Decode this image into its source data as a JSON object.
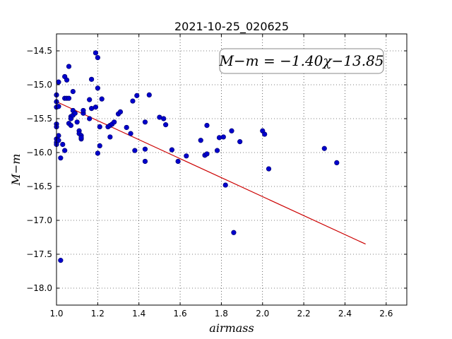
{
  "chart_data": {
    "type": "scatter",
    "title": "2021-10-25_020625",
    "xlabel": "airmass",
    "ylabel": "M−m",
    "xlim": [
      1.0,
      2.7
    ],
    "ylim": [
      -18.25,
      -14.25
    ],
    "y_inverted": true,
    "grid": true,
    "grid_style": "dotted",
    "x_ticks": [
      1.0,
      1.2,
      1.4,
      1.6,
      1.8,
      2.0,
      2.2,
      2.4,
      2.6
    ],
    "x_tick_labels": [
      "1.0",
      "1.2",
      "1.4",
      "1.6",
      "1.8",
      "2.0",
      "2.2",
      "2.4",
      "2.6"
    ],
    "y_ticks": [
      -14.5,
      -15.0,
      -15.5,
      -16.0,
      -16.5,
      -17.0,
      -17.5,
      -18.0
    ],
    "y_tick_labels": [
      "−14.5",
      "−15.0",
      "−15.5",
      "−16.0",
      "−16.5",
      "−17.0",
      "−17.5",
      "−18.0"
    ],
    "annotation": "M−m = −1.40χ−13.85",
    "colors": {
      "points": "#0000cc",
      "fit_line": "#cc0000"
    },
    "fit": {
      "slope": -1.4,
      "intercept": -13.85,
      "x_range": [
        1.0,
        2.5
      ]
    },
    "x": [
      1.0,
      1.0,
      1.0,
      1.0,
      1.0,
      1.0,
      1.0,
      1.0,
      1.01,
      1.01,
      1.01,
      1.01,
      1.02,
      1.02,
      1.03,
      1.04,
      1.04,
      1.04,
      1.05,
      1.05,
      1.06,
      1.06,
      1.06,
      1.07,
      1.07,
      1.07,
      1.08,
      1.08,
      1.08,
      1.09,
      1.1,
      1.11,
      1.11,
      1.12,
      1.12,
      1.12,
      1.13,
      1.13,
      1.16,
      1.16,
      1.17,
      1.17,
      1.19,
      1.19,
      1.2,
      1.2,
      1.2,
      1.21,
      1.21,
      1.22,
      1.25,
      1.26,
      1.26,
      1.27,
      1.28,
      1.3,
      1.31,
      1.34,
      1.36,
      1.37,
      1.38,
      1.39,
      1.43,
      1.43,
      1.43,
      1.45,
      1.5,
      1.52,
      1.53,
      1.56,
      1.59,
      1.63,
      1.7,
      1.72,
      1.73,
      1.73,
      1.78,
      1.79,
      1.81,
      1.82,
      1.85,
      1.86,
      1.89,
      2.0,
      2.01,
      2.03,
      2.3,
      2.36
    ],
    "y": [
      -15.15,
      -15.25,
      -15.33,
      -15.58,
      -15.62,
      -15.8,
      -15.85,
      -15.88,
      -14.96,
      -15.32,
      -15.75,
      -15.82,
      -16.08,
      -17.59,
      -15.88,
      -14.88,
      -15.2,
      -15.97,
      -15.2,
      -14.93,
      -14.73,
      -15.2,
      -15.57,
      -15.47,
      -15.5,
      -15.6,
      -15.1,
      -15.38,
      -15.45,
      -15.42,
      -15.55,
      -15.68,
      -15.72,
      -15.8,
      -15.75,
      -15.78,
      -15.42,
      -15.38,
      -15.22,
      -15.5,
      -14.92,
      -15.35,
      -14.53,
      -15.33,
      -14.6,
      -15.05,
      -16.01,
      -15.9,
      -15.62,
      -15.21,
      -15.62,
      -15.77,
      -15.6,
      -15.58,
      -15.55,
      -15.43,
      -15.4,
      -15.63,
      -15.72,
      -15.24,
      -15.97,
      -15.16,
      -15.55,
      -15.95,
      -16.13,
      -15.15,
      -15.48,
      -15.5,
      -15.59,
      -15.96,
      -16.13,
      -16.05,
      -15.82,
      -16.04,
      -16.02,
      -15.6,
      -15.97,
      -15.78,
      -15.77,
      -16.48,
      -15.68,
      -17.18,
      -15.84,
      -15.68,
      -15.73,
      -16.24,
      -15.94,
      -16.15
    ]
  }
}
